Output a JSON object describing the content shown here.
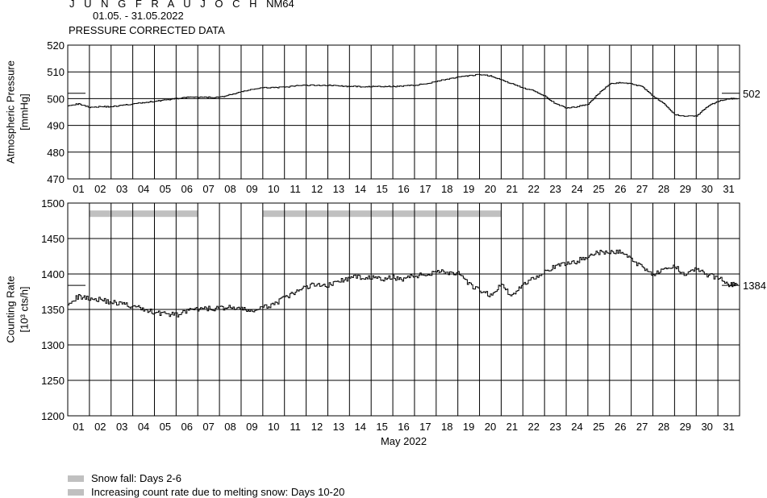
{
  "header": {
    "station": "J U N G F R A U J O C H",
    "code": "NM64",
    "dates": "01.05. - 31.05.2022",
    "subtitle": "PRESSURE CORRECTED DATA"
  },
  "legend": [
    {
      "label": "Snow fall: Days 2-6",
      "color": "#c0c0c0"
    },
    {
      "label": "Increasing count rate due to melting snow: Days 10-20",
      "color": "#c0c0c0"
    }
  ],
  "chart_data": [
    {
      "type": "line",
      "ylabel": "Atmospheric Pressure",
      "yunit": "[mmHg]",
      "ylim": [
        470,
        520
      ],
      "yticks": [
        470,
        480,
        490,
        500,
        510,
        520
      ],
      "xlim": [
        1,
        32
      ],
      "day_labels": [
        "01",
        "02",
        "03",
        "04",
        "05",
        "06",
        "07",
        "08",
        "09",
        "10",
        "11",
        "12",
        "13",
        "14",
        "15",
        "16",
        "17",
        "18",
        "19",
        "20",
        "21",
        "22",
        "23",
        "24",
        "25",
        "26",
        "27",
        "28",
        "29",
        "30",
        "31"
      ],
      "grid": true,
      "reference": {
        "value": 502,
        "label": "502"
      },
      "series": [
        {
          "x": [
            1.0,
            1.5,
            2.0,
            2.5,
            3.0,
            3.5,
            4.0,
            4.5,
            5.0,
            5.5,
            6.0,
            6.5,
            7.0,
            7.5,
            8.0,
            8.5,
            9.0,
            9.5,
            10.0,
            10.5,
            11.0,
            11.5,
            12.0,
            12.5,
            13.0,
            13.5,
            14.0,
            14.5,
            15.0,
            15.5,
            16.0,
            16.5,
            17.0,
            17.5,
            18.0,
            18.5,
            19.0,
            19.5,
            20.0,
            20.5,
            21.0,
            21.5,
            22.0,
            22.5,
            23.0,
            23.5,
            24.0,
            24.5,
            25.0,
            25.5,
            26.0,
            26.5,
            27.0,
            27.5,
            28.0,
            28.5,
            29.0,
            29.5,
            30.0,
            30.5,
            31.0,
            31.5,
            31.9
          ],
          "y": [
            497.5,
            498.0,
            496.8,
            497.0,
            497.0,
            497.5,
            498.0,
            498.5,
            499.0,
            499.5,
            500.0,
            500.5,
            500.5,
            500.5,
            500.5,
            501.5,
            502.5,
            503.5,
            504.0,
            504.2,
            504.2,
            504.8,
            505.0,
            505.0,
            505.0,
            504.8,
            504.5,
            504.5,
            504.5,
            504.5,
            504.5,
            504.8,
            505.0,
            505.5,
            506.5,
            507.3,
            508.0,
            508.5,
            509.0,
            508.5,
            507.0,
            505.5,
            504.0,
            503.0,
            501.0,
            498.0,
            496.5,
            497.0,
            498.0,
            502.0,
            505.5,
            506.0,
            505.5,
            504.5,
            501.0,
            498.0,
            494.0,
            493.5,
            493.5,
            497.0,
            499.0,
            500.0,
            500.0
          ]
        }
      ]
    },
    {
      "type": "line",
      "ylabel": "Counting Rate",
      "yunit": "[10³ cts/h]",
      "ylim": [
        1200,
        1500
      ],
      "yticks": [
        1200,
        1250,
        1300,
        1350,
        1400,
        1450,
        1500
      ],
      "xlim": [
        1,
        32
      ],
      "day_labels": [
        "01",
        "02",
        "03",
        "04",
        "05",
        "06",
        "07",
        "08",
        "09",
        "10",
        "11",
        "12",
        "13",
        "14",
        "15",
        "16",
        "17",
        "18",
        "19",
        "20",
        "21",
        "22",
        "23",
        "24",
        "25",
        "26",
        "27",
        "28",
        "29",
        "30",
        "31"
      ],
      "xlabel": "May 2022",
      "grid": true,
      "reference": {
        "value": 1384,
        "label": "1384"
      },
      "bands": [
        {
          "from": 2,
          "to": 7,
          "value": 1485
        },
        {
          "from": 10,
          "to": 21,
          "value": 1485
        }
      ],
      "series": [
        {
          "x": [
            1.0,
            1.5,
            2.0,
            2.5,
            3.0,
            3.5,
            4.0,
            4.5,
            5.0,
            5.5,
            6.0,
            6.5,
            7.0,
            7.5,
            8.0,
            8.5,
            9.0,
            9.5,
            10.0,
            10.5,
            11.0,
            11.5,
            12.0,
            12.5,
            13.0,
            13.5,
            14.0,
            14.5,
            15.0,
            15.5,
            16.0,
            16.5,
            17.0,
            17.5,
            18.0,
            18.5,
            19.0,
            19.5,
            20.0,
            20.5,
            21.0,
            21.5,
            22.0,
            22.5,
            23.0,
            23.5,
            24.0,
            24.5,
            25.0,
            25.5,
            26.0,
            26.5,
            27.0,
            27.5,
            28.0,
            28.5,
            29.0,
            29.5,
            30.0,
            30.5,
            31.0,
            31.5,
            31.9
          ],
          "y": [
            1360,
            1368,
            1366,
            1364,
            1360,
            1358,
            1354,
            1350,
            1346,
            1344,
            1342,
            1348,
            1350,
            1351,
            1352,
            1353,
            1350,
            1348,
            1352,
            1358,
            1366,
            1374,
            1382,
            1386,
            1384,
            1390,
            1394,
            1396,
            1395,
            1392,
            1395,
            1393,
            1398,
            1398,
            1405,
            1402,
            1400,
            1385,
            1376,
            1370,
            1385,
            1368,
            1386,
            1395,
            1404,
            1410,
            1415,
            1418,
            1426,
            1430,
            1430,
            1432,
            1420,
            1410,
            1400,
            1405,
            1410,
            1400,
            1408,
            1398,
            1395,
            1385,
            1386
          ]
        }
      ]
    }
  ]
}
